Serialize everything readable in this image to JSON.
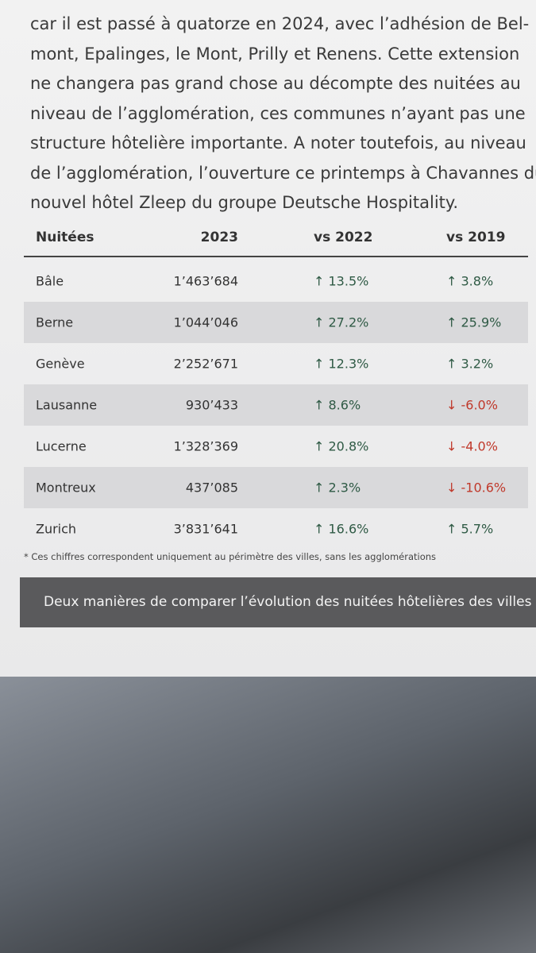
{
  "paragraph": {
    "lines": [
      "car il est passé à quatorze en 2024, avec l’adhésion de Bel-",
      "mont, Epalinges, le Mont, Prilly et Renens. Cette extension",
      "ne changera pas grand chose au décompte des nuitées au",
      "niveau de l’agglomération, ces communes n’ayant pas une",
      "structure hôtelière importante. A noter toutefois, au niveau",
      "de l’agglomération, l’ouverture ce printemps à Chavannes du",
      "nouvel hôtel Zleep du groupe Deutsche Hospitality."
    ]
  },
  "table": {
    "header": [
      "Nuitées",
      "2023",
      "vs 2022",
      "vs 2019"
    ],
    "rows": [
      [
        "Bâle",
        "1’463’684",
        "↑ 13.5%",
        "↑ 3.8%"
      ],
      [
        "Berne",
        "1’044’046",
        "↑ 27.2%",
        "↑ 25.9%"
      ],
      [
        "Genève",
        "2’252’671",
        "↑ 12.3%",
        "↑ 3.2%"
      ],
      [
        "Lausanne",
        "930’433",
        "↑ 8.6%",
        "↓ -6.0%"
      ],
      [
        "Lucerne",
        "1’328’369",
        "↑ 20.8%",
        "↓ -4.0%"
      ],
      [
        "Montreux",
        "437’085",
        "↑ 2.3%",
        "↓ -10.6%"
      ],
      [
        "Zurich",
        "3’831’641",
        "↑ 16.6%",
        "↑ 5.7%"
      ]
    ]
  },
  "footnote": "* Ces chiffres correspondent uniquement au périmètre des villes, sans les agglomérations",
  "caption": "Deux manières de comparer l’évolution des nuitées hôtelières des villes"
}
